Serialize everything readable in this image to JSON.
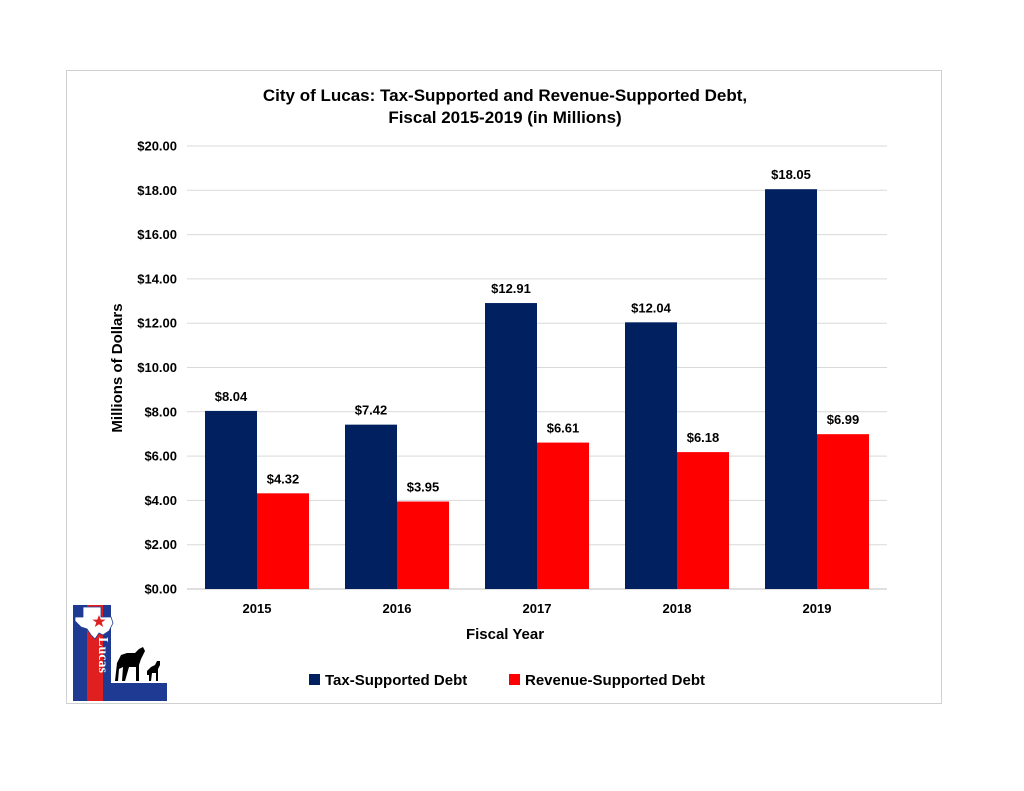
{
  "chart_data": {
    "type": "bar",
    "title_lines": [
      "City of Lucas: Tax-Supported and Revenue-Supported Debt,",
      "Fiscal 2015-2019 (in Millions)"
    ],
    "xlabel": "Fiscal Year",
    "ylabel": "Millions of Dollars",
    "categories": [
      "2015",
      "2016",
      "2017",
      "2018",
      "2019"
    ],
    "ylim": [
      0,
      20
    ],
    "y_ticks": [
      {
        "value": 0,
        "label": "$0.00"
      },
      {
        "value": 2,
        "label": "$2.00"
      },
      {
        "value": 4,
        "label": "$4.00"
      },
      {
        "value": 6,
        "label": "$6.00"
      },
      {
        "value": 8,
        "label": "$8.00"
      },
      {
        "value": 10,
        "label": "$10.00"
      },
      {
        "value": 12,
        "label": "$12.00"
      },
      {
        "value": 14,
        "label": "$14.00"
      },
      {
        "value": 16,
        "label": "$16.00"
      },
      {
        "value": 18,
        "label": "$18.00"
      },
      {
        "value": 20,
        "label": "$20.00"
      }
    ],
    "grid": true,
    "legend_position": "bottom",
    "series": [
      {
        "name": "Tax-Supported Debt",
        "color": "#002060",
        "values": [
          8.04,
          7.42,
          12.91,
          12.04,
          18.05
        ],
        "labels": [
          "$8.04",
          "$7.42",
          "$12.91",
          "$12.04",
          "$18.05"
        ]
      },
      {
        "name": "Revenue-Supported Debt",
        "color": "#ff0000",
        "values": [
          4.32,
          3.95,
          6.61,
          6.18,
          6.99
        ],
        "labels": [
          "$4.32",
          "$3.95",
          "$6.61",
          "$6.18",
          "$6.99"
        ]
      }
    ]
  },
  "logo": {
    "text": "Lucas",
    "colors": {
      "blue": "#1f3a93",
      "red": "#e02020",
      "white": "#ffffff",
      "black": "#000000"
    },
    "icons": [
      "texas-star-icon",
      "horses-icon"
    ]
  }
}
